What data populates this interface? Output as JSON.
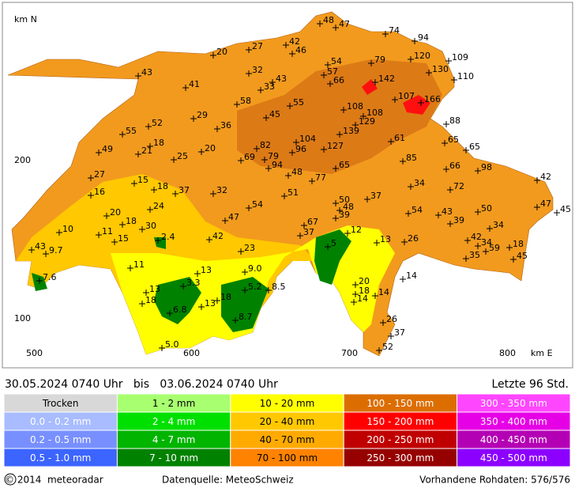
{
  "map": {
    "axis": {
      "y_unit": "km N",
      "x_unit": "km E",
      "y_labels": [
        "200",
        "100"
      ],
      "x_labels": [
        "500",
        "600",
        "700",
        "800"
      ]
    },
    "stations": [
      "48",
      "47",
      "74",
      "94",
      "42",
      "46",
      "20",
      "27",
      "43",
      "54",
      "79",
      "120",
      "109",
      "32",
      "57",
      "130",
      "110",
      "41",
      "33",
      "43",
      "66",
      "142",
      "58",
      "55",
      "107",
      "166",
      "29",
      "45",
      "108",
      "108",
      "129",
      "88",
      "52",
      "55",
      "36",
      "139",
      "61",
      "65",
      "18",
      "104",
      "127",
      "65",
      "49",
      "21",
      "20",
      "82",
      "96",
      "25",
      "69",
      "79",
      "85",
      "94",
      "65",
      "66",
      "98",
      "27",
      "15",
      "48",
      "77",
      "42",
      "18",
      "37",
      "32",
      "51",
      "34",
      "72",
      "16",
      "37",
      "50",
      "47",
      "45",
      "24",
      "54",
      "48",
      "54",
      "43",
      "50",
      "20",
      "47",
      "39",
      "39",
      "18",
      "30",
      "67",
      "10",
      "11",
      "37",
      "12",
      "34",
      "15",
      "2.4",
      "42",
      "13",
      "26",
      "42",
      "34",
      "59",
      "18",
      "43",
      "9.7",
      "23",
      "5",
      "45",
      "35",
      "11",
      "13",
      "9.0",
      "14",
      "7.6",
      "20",
      "13",
      "3.3",
      "5.2",
      "8.5",
      "14",
      "18",
      "14",
      "18",
      "13",
      "18",
      "6.8",
      "8.7",
      "26",
      "37",
      "5.0",
      "52"
    ]
  },
  "header": {
    "period": "30.05.2024 0740 Uhr   bis   03.06.2024 0740 Uhr",
    "window": "Letzte 96 Std."
  },
  "legend": [
    [
      {
        "label": "Trocken",
        "color": "#d8d8d8"
      },
      {
        "label": "0.0 - 0.2 mm",
        "color": "#a8bcff"
      },
      {
        "label": "0.2 - 0.5 mm",
        "color": "#7890ff"
      },
      {
        "label": "0.5 - 1.0 mm",
        "color": "#3c64ff"
      }
    ],
    [
      {
        "label": "1 - 2 mm",
        "color": "#a8ff70"
      },
      {
        "label": "2 - 4 mm",
        "color": "#00e000"
      },
      {
        "label": "4 - 7 mm",
        "color": "#00b400"
      },
      {
        "label": "7 - 10 mm",
        "color": "#008200"
      }
    ],
    [
      {
        "label": "10 - 20 mm",
        "color": "#ffff00"
      },
      {
        "label": "20 - 40 mm",
        "color": "#ffc800"
      },
      {
        "label": "40 - 70 mm",
        "color": "#ffaa00"
      },
      {
        "label": "70 - 100 mm",
        "color": "#ff8200"
      }
    ],
    [
      {
        "label": "100 - 150 mm",
        "color": "#dc6e00"
      },
      {
        "label": "150 - 200 mm",
        "color": "#ff0000"
      },
      {
        "label": "200 - 250 mm",
        "color": "#c00000"
      },
      {
        "label": "250 - 300 mm",
        "color": "#960000"
      }
    ],
    [
      {
        "label": "300 - 350 mm",
        "color": "#ff46ff"
      },
      {
        "label": "350 - 400 mm",
        "color": "#e600e6"
      },
      {
        "label": "400 - 450 mm",
        "color": "#b400b4"
      },
      {
        "label": "450 - 500 mm",
        "color": "#8c00ff"
      }
    ]
  ],
  "footer": {
    "copyright": "© 2014  meteoradar",
    "source": "Datenquelle: MeteoSchweiz",
    "raw": "Vorhandene Rohdaten: 576/576"
  }
}
